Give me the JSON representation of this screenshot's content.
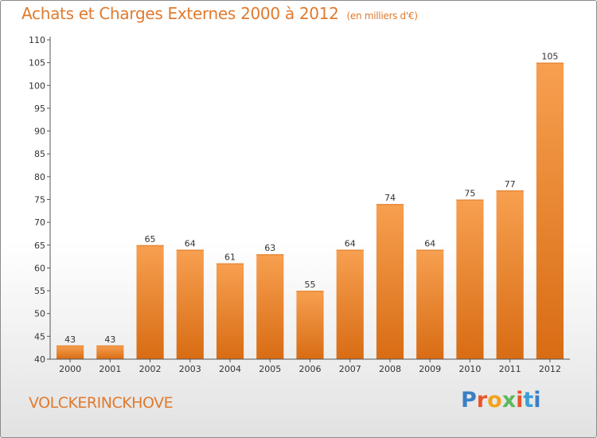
{
  "chart_data": {
    "type": "bar",
    "title": "Achats et Charges Externes 2000 à 2012",
    "subtitle": "(en milliers d'€)",
    "categories": [
      "2000",
      "2001",
      "2002",
      "2003",
      "2004",
      "2005",
      "2006",
      "2007",
      "2008",
      "2009",
      "2010",
      "2011",
      "2012"
    ],
    "values": [
      43,
      43,
      65,
      64,
      61,
      63,
      55,
      64,
      74,
      64,
      75,
      77,
      105
    ],
    "ylim": [
      40,
      110
    ],
    "yticks": [
      40,
      45,
      50,
      55,
      60,
      65,
      70,
      75,
      80,
      85,
      90,
      95,
      100,
      105,
      110
    ],
    "grid": false,
    "bar_color": "#f2923a"
  },
  "footer": {
    "place": "VOLCKERINCKHOVE",
    "logo": [
      "P",
      "r",
      "o",
      "x",
      "i",
      "t",
      "i"
    ]
  }
}
